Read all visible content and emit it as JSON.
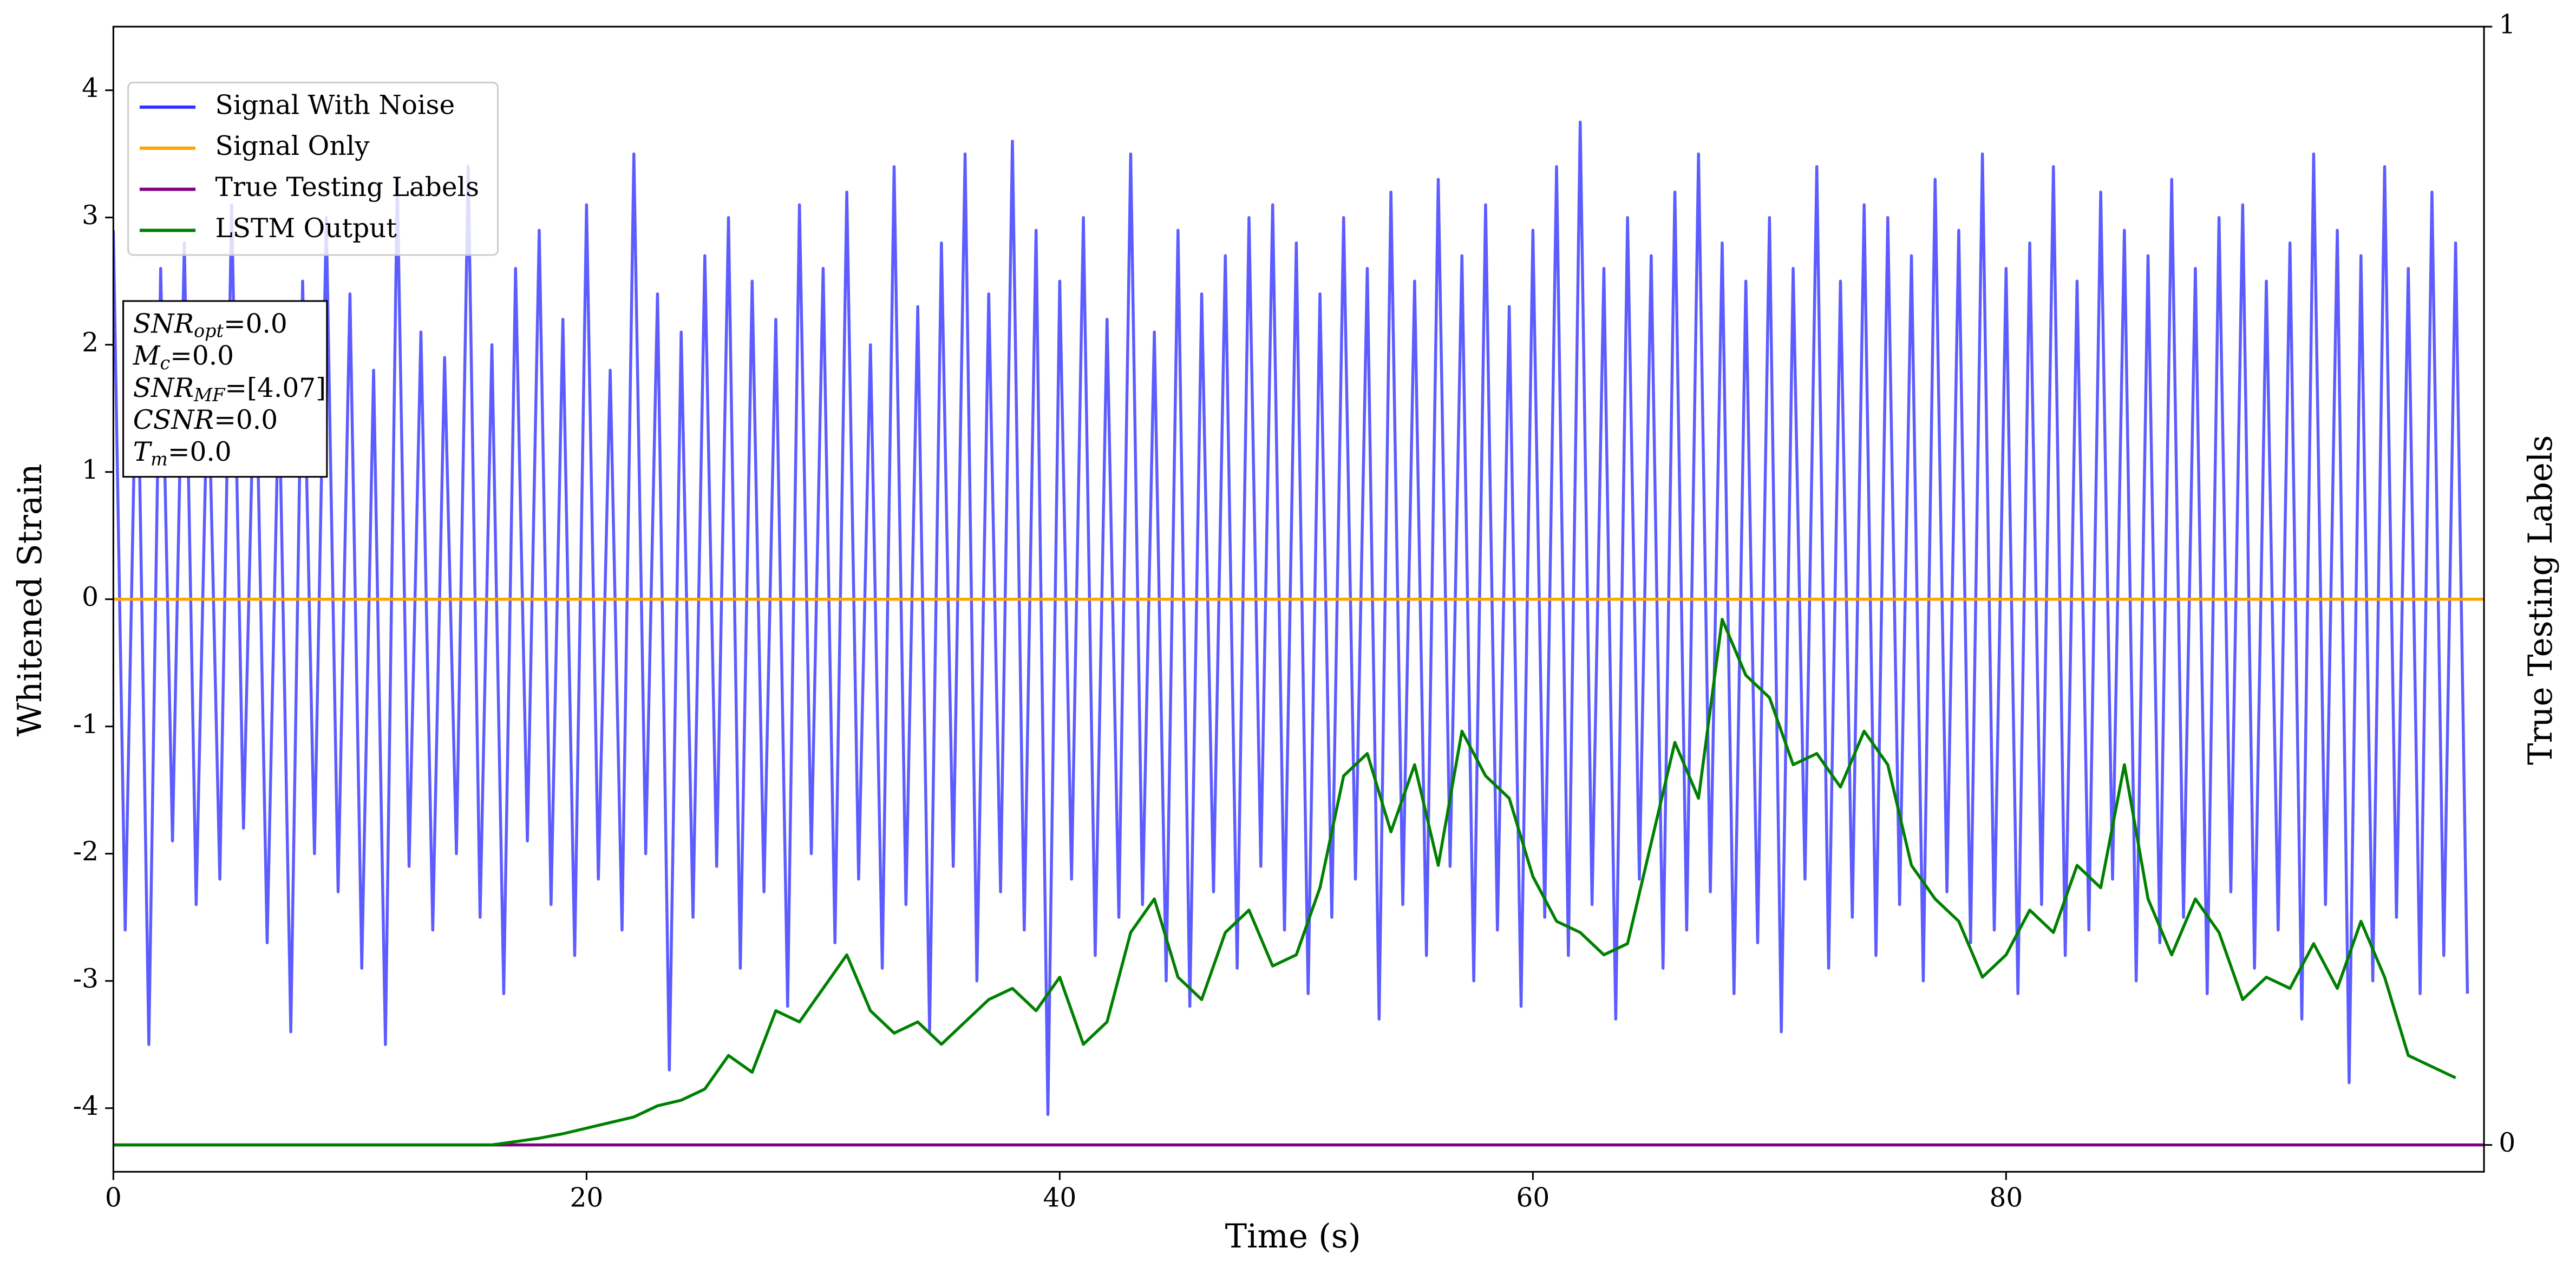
{
  "chart_data": {
    "type": "line",
    "xlabel": "Time (s)",
    "ylabel": "Whitened Strain",
    "y2label": "True Testing Labels",
    "xlim": [
      0,
      100.2
    ],
    "ylim": [
      -4.5,
      4.5
    ],
    "y2lim": [
      -0.024,
      1.0
    ],
    "xticks": [
      0,
      20,
      40,
      60,
      80
    ],
    "yticks": [
      -4,
      -3,
      -2,
      -1,
      0,
      1,
      2,
      3,
      4
    ],
    "y2ticks": [
      0,
      1
    ],
    "legend": "upper left",
    "annotations": [
      {
        "text": "SNR",
        "sub": "opt",
        "rest": "=0.0"
      },
      {
        "text": "M",
        "sub": "c",
        "rest": "=0.0"
      },
      {
        "text": "SNR",
        "sub": "MF",
        "rest": "=[4.07]"
      },
      {
        "text": "CSNR",
        "rest": "=0.0"
      },
      {
        "text": "T",
        "sub": "m",
        "rest": "=0.0"
      }
    ],
    "series": [
      {
        "name": "Signal With Noise",
        "color": "#3333ff",
        "axis": "y",
        "x": [
          0,
          0.5,
          1,
          1.5,
          2,
          2.5,
          3,
          3.5,
          4,
          4.5,
          5,
          5.5,
          6,
          6.5,
          7,
          7.5,
          8,
          8.5,
          9,
          9.5,
          10,
          10.5,
          11,
          11.5,
          12,
          12.5,
          13,
          13.5,
          14,
          14.5,
          15,
          15.5,
          16,
          16.5,
          17,
          17.5,
          18,
          18.5,
          19,
          19.5,
          20,
          20.5,
          21,
          21.5,
          22,
          22.5,
          23,
          23.5,
          24,
          24.5,
          25,
          25.5,
          26,
          26.5,
          27,
          27.5,
          28,
          28.5,
          29,
          29.5,
          30,
          30.5,
          31,
          31.5,
          32,
          32.5,
          33,
          33.5,
          34,
          34.5,
          35,
          35.5,
          36,
          36.5,
          37,
          37.5,
          38,
          38.5,
          39,
          39.5,
          40,
          40.5,
          41,
          41.5,
          42,
          42.5,
          43,
          43.5,
          44,
          44.5,
          45,
          45.5,
          46,
          46.5,
          47,
          47.5,
          48,
          48.5,
          49,
          49.5,
          50,
          50.5,
          51,
          51.5,
          52,
          52.5,
          53,
          53.5,
          54,
          54.5,
          55,
          55.5,
          56,
          56.5,
          57,
          57.5,
          58,
          58.5,
          59,
          59.5,
          60,
          60.5,
          61,
          61.5,
          62,
          62.5,
          63,
          63.5,
          64,
          64.5,
          65,
          65.5,
          66,
          66.5,
          67,
          67.5,
          68,
          68.5,
          69,
          69.5,
          70,
          70.5,
          71,
          71.5,
          72,
          72.5,
          73,
          73.5,
          74,
          74.5,
          75,
          75.5,
          76,
          76.5,
          77,
          77.5,
          78,
          78.5,
          79,
          79.5,
          80,
          80.5,
          81,
          81.5,
          82,
          82.5,
          83,
          83.5,
          84,
          84.5,
          85,
          85.5,
          86,
          86.5,
          87,
          87.5,
          88,
          88.5,
          89,
          89.5,
          90,
          90.5,
          91,
          91.5,
          92,
          92.5,
          93,
          93.5,
          94,
          94.5,
          95,
          95.5,
          96,
          96.5,
          97,
          97.5,
          98,
          98.5,
          99,
          99.5
        ],
        "values": [
          2.9,
          -2.6,
          2.3,
          -3.5,
          2.6,
          -1.9,
          2.8,
          -2.4,
          1.9,
          -2.2,
          3.1,
          -1.8,
          2.2,
          -2.7,
          1.7,
          -3.4,
          2.5,
          -2.0,
          3.0,
          -2.3,
          2.4,
          -2.9,
          1.8,
          -3.5,
          3.3,
          -2.1,
          2.1,
          -2.6,
          1.9,
          -2.0,
          3.4,
          -2.5,
          2.0,
          -3.1,
          2.6,
          -1.9,
          2.9,
          -2.4,
          2.2,
          -2.8,
          3.1,
          -2.2,
          1.8,
          -2.6,
          3.5,
          -2.0,
          2.4,
          -3.7,
          2.1,
          -2.5,
          2.7,
          -2.1,
          3.0,
          -2.9,
          2.5,
          -2.3,
          2.2,
          -3.2,
          3.1,
          -2.0,
          2.6,
          -2.7,
          3.2,
          -2.2,
          2.0,
          -2.9,
          3.4,
          -2.4,
          2.3,
          -3.4,
          2.8,
          -2.1,
          3.5,
          -3.0,
          2.4,
          -2.3,
          3.6,
          -2.6,
          2.9,
          -4.05,
          2.5,
          -2.2,
          3.0,
          -2.8,
          2.2,
          -2.5,
          3.5,
          -2.4,
          2.1,
          -3.0,
          2.9,
          -3.2,
          2.4,
          -2.3,
          2.7,
          -2.9,
          3.0,
          -2.1,
          3.1,
          -2.6,
          2.8,
          -3.1,
          2.4,
          -2.5,
          3.0,
          -2.2,
          2.6,
          -3.3,
          3.2,
          -2.4,
          2.5,
          -2.8,
          3.3,
          -2.1,
          2.7,
          -3.0,
          3.1,
          -2.6,
          2.3,
          -3.2,
          2.9,
          -2.5,
          3.4,
          -2.8,
          3.75,
          -2.4,
          2.6,
          -3.3,
          3.0,
          -2.2,
          2.7,
          -2.9,
          3.2,
          -2.6,
          3.5,
          -2.3,
          2.8,
          -3.1,
          2.5,
          -2.7,
          3.0,
          -3.4,
          2.6,
          -2.2,
          3.4,
          -2.9,
          2.5,
          -2.5,
          3.1,
          -2.8,
          3.0,
          -2.4,
          2.7,
          -3.0,
          3.3,
          -2.3,
          2.9,
          -2.7,
          3.5,
          -2.6,
          2.6,
          -3.1,
          2.8,
          -2.4,
          3.4,
          -2.8,
          2.5,
          -2.6,
          3.2,
          -2.2,
          2.9,
          -3.0,
          2.7,
          -2.7,
          3.3,
          -2.5,
          2.6,
          -3.1,
          3.0,
          -2.3,
          3.1,
          -2.9,
          2.5,
          -2.6,
          2.8,
          -3.3,
          3.5,
          -2.4,
          2.9,
          -3.8,
          2.7,
          -3.0,
          3.4,
          -2.5,
          2.6,
          -3.1,
          3.2,
          -2.8,
          2.8,
          -3.1
        ]
      },
      {
        "name": "Signal Only",
        "color": "#ffa500",
        "axis": "y",
        "x": [
          0,
          100.2
        ],
        "values": [
          0,
          0
        ]
      },
      {
        "name": "True Testing Labels",
        "color": "#800080",
        "axis": "y2",
        "x": [
          0,
          100.2
        ],
        "values": [
          0,
          0
        ]
      },
      {
        "name": "LSTM Output",
        "color": "#008000",
        "axis": "y2",
        "x": [
          0,
          1,
          2,
          3,
          4,
          5,
          6,
          7,
          8,
          9,
          10,
          11,
          12,
          13,
          14,
          15,
          16,
          17,
          18,
          19,
          20,
          21,
          22,
          23,
          24,
          25,
          26,
          27,
          28,
          29,
          30,
          31,
          32,
          33,
          34,
          35,
          36,
          37,
          38,
          39,
          40,
          41,
          42,
          43,
          44,
          45,
          46,
          47,
          48,
          49,
          50,
          51,
          52,
          53,
          54,
          55,
          56,
          57,
          58,
          59,
          60,
          61,
          62,
          63,
          64,
          65,
          66,
          67,
          68,
          69,
          70,
          71,
          72,
          73,
          74,
          75,
          76,
          77,
          78,
          79,
          80,
          81,
          82,
          83,
          84,
          85,
          86,
          87,
          88,
          89,
          90,
          91,
          92,
          93,
          94,
          95,
          96,
          97,
          98,
          99
        ],
        "values": [
          0,
          0,
          0,
          0,
          0,
          0,
          0,
          0,
          0,
          0,
          0,
          0,
          0,
          0,
          0,
          0,
          0,
          0.003,
          0.006,
          0.01,
          0.015,
          0.02,
          0.025,
          0.035,
          0.04,
          0.05,
          0.08,
          0.065,
          0.12,
          0.11,
          0.14,
          0.17,
          0.12,
          0.1,
          0.11,
          0.09,
          0.11,
          0.13,
          0.14,
          0.12,
          0.15,
          0.09,
          0.11,
          0.19,
          0.22,
          0.15,
          0.13,
          0.19,
          0.21,
          0.16,
          0.17,
          0.23,
          0.33,
          0.35,
          0.28,
          0.34,
          0.25,
          0.37,
          0.33,
          0.31,
          0.24,
          0.2,
          0.19,
          0.17,
          0.18,
          0.27,
          0.36,
          0.31,
          0.47,
          0.42,
          0.4,
          0.34,
          0.35,
          0.32,
          0.37,
          0.34,
          0.25,
          0.22,
          0.2,
          0.15,
          0.17,
          0.21,
          0.19,
          0.25,
          0.23,
          0.34,
          0.22,
          0.17,
          0.22,
          0.19,
          0.13,
          0.15,
          0.14,
          0.18,
          0.14,
          0.2,
          0.15,
          0.08,
          0.07,
          0.06
        ]
      }
    ]
  }
}
